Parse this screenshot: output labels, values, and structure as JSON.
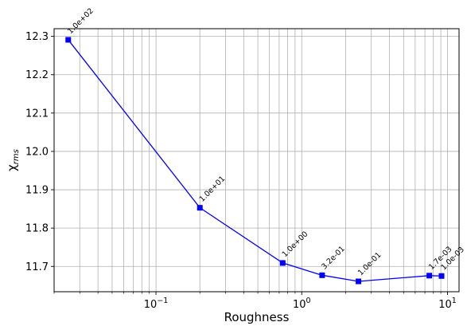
{
  "chart_data": {
    "type": "line",
    "xlabel": "Roughness",
    "ylabel": "χrms",
    "ylabel_main": "χ",
    "ylabel_sub": "rms",
    "xscale": "log",
    "xlim": [
      0.02,
      12
    ],
    "ylim": [
      11.634,
      12.32
    ],
    "grid": true,
    "x_ticks": [
      {
        "value": 0.1,
        "base": "10",
        "exp": "−1"
      },
      {
        "value": 1,
        "base": "10",
        "exp": "0"
      },
      {
        "value": 10,
        "base": "10",
        "exp": "1"
      }
    ],
    "y_ticks": [
      {
        "value": 11.7,
        "label": "11.7"
      },
      {
        "value": 11.8,
        "label": "11.8"
      },
      {
        "value": 11.9,
        "label": "11.9"
      },
      {
        "value": 12.0,
        "label": "12.0"
      },
      {
        "value": 12.1,
        "label": "12.1"
      },
      {
        "value": 12.2,
        "label": "12.2"
      },
      {
        "value": 12.3,
        "label": "12.3"
      }
    ],
    "series": [
      {
        "color": "#0000ff",
        "marker": "square",
        "points": [
          {
            "x": 0.025,
            "y": 12.291,
            "label": "1.0e+02"
          },
          {
            "x": 0.2,
            "y": 11.853,
            "label": "1.0e+01"
          },
          {
            "x": 0.74,
            "y": 11.709,
            "label": "1.0e+00"
          },
          {
            "x": 1.38,
            "y": 11.677,
            "label": "3.2e-01"
          },
          {
            "x": 2.45,
            "y": 11.661,
            "label": "1.0e-01"
          },
          {
            "x": 7.5,
            "y": 11.676,
            "label": "1.7e-03"
          },
          {
            "x": 9.1,
            "y": 11.675,
            "label": "1.0e-03"
          }
        ]
      }
    ]
  }
}
